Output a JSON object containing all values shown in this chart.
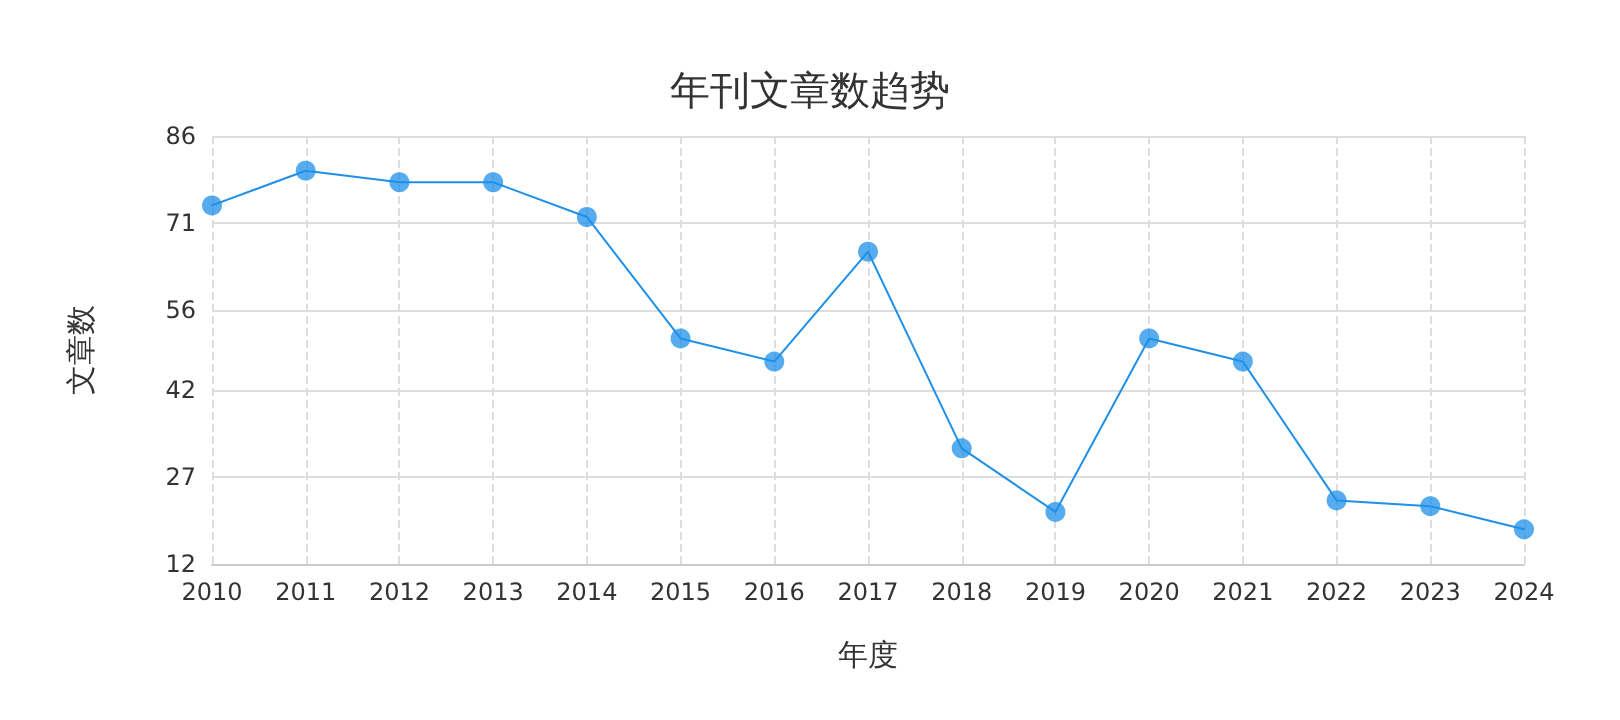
{
  "chart_data": {
    "type": "line",
    "title": "年刊文章数趋势",
    "xlabel": "年度",
    "ylabel": "文章数",
    "categories": [
      "2010",
      "2011",
      "2012",
      "2013",
      "2014",
      "2015",
      "2016",
      "2017",
      "2018",
      "2019",
      "2020",
      "2021",
      "2022",
      "2023",
      "2024"
    ],
    "series": [
      {
        "color": "#1e90e8",
        "values": [
          74,
          80,
          78,
          78,
          72,
          51,
          47,
          66,
          32,
          21,
          51,
          47,
          23,
          22,
          18
        ]
      }
    ],
    "ylim": [
      12,
      86
    ],
    "yticks": [
      12,
      27,
      42,
      56,
      71,
      86
    ],
    "grid": true,
    "marker": "circle",
    "line_style": "solid"
  }
}
